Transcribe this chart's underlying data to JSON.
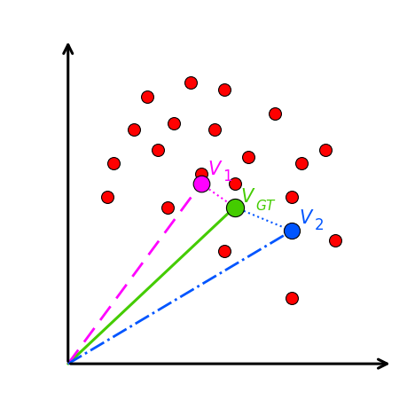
{
  "red_dots": [
    [
      3.2,
      8.8
    ],
    [
      4.5,
      9.2
    ],
    [
      5.5,
      9.0
    ],
    [
      2.8,
      7.8
    ],
    [
      4.0,
      8.0
    ],
    [
      5.2,
      7.8
    ],
    [
      7.0,
      8.3
    ],
    [
      2.2,
      6.8
    ],
    [
      3.5,
      7.2
    ],
    [
      4.8,
      6.5
    ],
    [
      6.2,
      7.0
    ],
    [
      7.8,
      6.8
    ],
    [
      8.5,
      7.2
    ],
    [
      2.0,
      5.8
    ],
    [
      3.8,
      5.5
    ],
    [
      5.8,
      6.2
    ],
    [
      7.5,
      5.8
    ],
    [
      5.5,
      4.2
    ],
    [
      8.8,
      4.5
    ],
    [
      7.5,
      2.8
    ]
  ],
  "v1": [
    4.8,
    6.2
  ],
  "vgt": [
    5.8,
    5.5
  ],
  "v2": [
    7.5,
    4.8
  ],
  "origin_x": 0.08,
  "origin_y": 0.08,
  "red_color": "#ff0000",
  "v1_color": "#ff00ff",
  "vgt_color": "#44cc00",
  "v2_color": "#0055ff",
  "xlim": [
    0,
    10.5
  ],
  "ylim": [
    0,
    10.5
  ],
  "figw": 3.8,
  "figh": 3.9
}
